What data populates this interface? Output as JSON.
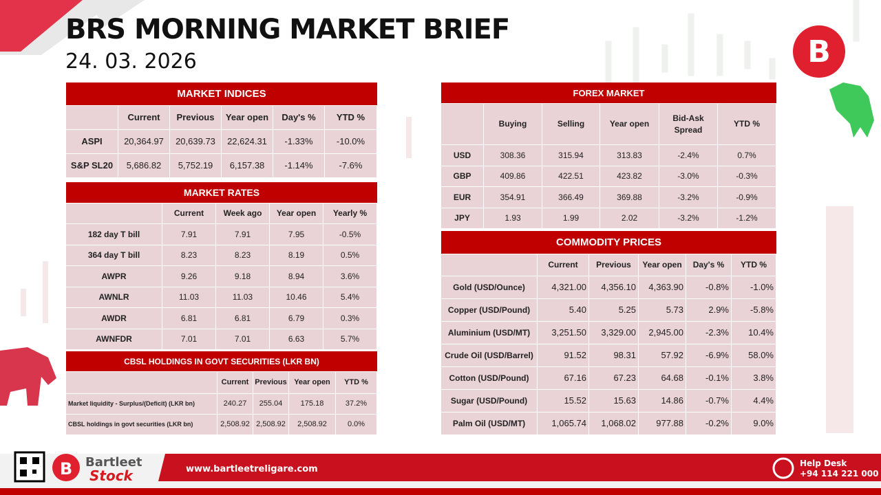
{
  "header": {
    "title": "BRS MORNING MARKET BRIEF",
    "date": "24. 03. 2026"
  },
  "market_indices": {
    "title": "MARKET INDICES",
    "columns": [
      "Current",
      "Previous",
      "Year open",
      "Day's %",
      "YTD %"
    ],
    "rows": [
      [
        "ASPI",
        "20,364.97",
        "20,639.73",
        "22,624.31",
        "-1.33%",
        "-10.0%"
      ],
      [
        "S&P SL20",
        "5,686.82",
        "5,752.19",
        "6,157.38",
        "-1.14%",
        "-7.6%"
      ]
    ]
  },
  "market_rates": {
    "title": "MARKET RATES",
    "columns": [
      "Current",
      "Week ago",
      "Year open",
      "Yearly %"
    ],
    "rows": [
      [
        "182 day T bill",
        "7.91",
        "7.91",
        "7.95",
        "-0.5%"
      ],
      [
        "364 day T bill",
        "8.23",
        "8.23",
        "8.19",
        "0.5%"
      ],
      [
        "AWPR",
        "9.26",
        "9.18",
        "8.94",
        "3.6%"
      ],
      [
        "AWNLR",
        "11.03",
        "11.03",
        "10.46",
        "5.4%"
      ],
      [
        "AWDR",
        "6.81",
        "6.81",
        "6.79",
        "0.3%"
      ],
      [
        "AWNFDR",
        "7.01",
        "7.01",
        "6.63",
        "5.7%"
      ]
    ]
  },
  "cbsl_holdings": {
    "title": "CBSL HOLDINGS IN GOVT SECURITIES (LKR BN)",
    "columns": [
      "Current",
      "Previous",
      "Year open",
      "YTD %"
    ],
    "rows": [
      [
        "Market liquidity - Surplus/(Deficit) (LKR bn)",
        "240.27",
        "255.04",
        "175.18",
        "37.2%"
      ],
      [
        "CBSL holdings in govt securities (LKR bn)",
        "2,508.92",
        "2,508.92",
        "2,508.92",
        "0.0%"
      ]
    ]
  },
  "forex_market": {
    "title": "FOREX MARKET",
    "columns": [
      "Buying",
      "Selling",
      "Year open",
      "Bid-Ask Spread",
      "YTD %"
    ],
    "rows": [
      [
        "USD",
        "308.36",
        "315.94",
        "313.83",
        "-2.4%",
        "0.7%"
      ],
      [
        "GBP",
        "409.86",
        "422.51",
        "423.82",
        "-3.0%",
        "-0.3%"
      ],
      [
        "EUR",
        "354.91",
        "366.49",
        "369.88",
        "-3.2%",
        "-0.9%"
      ],
      [
        "JPY",
        "1.93",
        "1.99",
        "2.02",
        "-3.2%",
        "-1.2%"
      ]
    ]
  },
  "commodity_prices": {
    "title": "COMMODITY PRICES",
    "columns": [
      "Current",
      "Previous",
      "Year open",
      "Day's %",
      "YTD %"
    ],
    "rows": [
      [
        "Gold (USD/Ounce)",
        "4,321.00",
        "4,356.10",
        "4,363.90",
        "-0.8%",
        "-1.0%"
      ],
      [
        "Copper (USD/Pound)",
        "5.40",
        "5.25",
        "5.73",
        "2.9%",
        "-5.8%"
      ],
      [
        "Aluminium (USD/MT)",
        "3,251.50",
        "3,329.00",
        "2,945.00",
        "-2.3%",
        "10.4%"
      ],
      [
        "Crude Oil (USD/Barrel)",
        "91.52",
        "98.31",
        "57.92",
        "-6.9%",
        "58.0%"
      ],
      [
        "Cotton (USD/Pound)",
        "67.16",
        "67.23",
        "64.68",
        "-0.1%",
        "3.8%"
      ],
      [
        "Sugar (USD/Pound)",
        "15.52",
        "15.63",
        "14.86",
        "-0.7%",
        "4.4%"
      ],
      [
        "Palm Oil (USD/MT)",
        "1,065.74",
        "1,068.02",
        "977.88",
        "-0.2%",
        "9.0%"
      ]
    ]
  },
  "footer": {
    "brand_top": "Bartleet",
    "brand_bottom": "Stock",
    "website": "www.bartleetreligare.com",
    "help_label": "Help Desk",
    "help_phone": "+94 114 221 000"
  }
}
